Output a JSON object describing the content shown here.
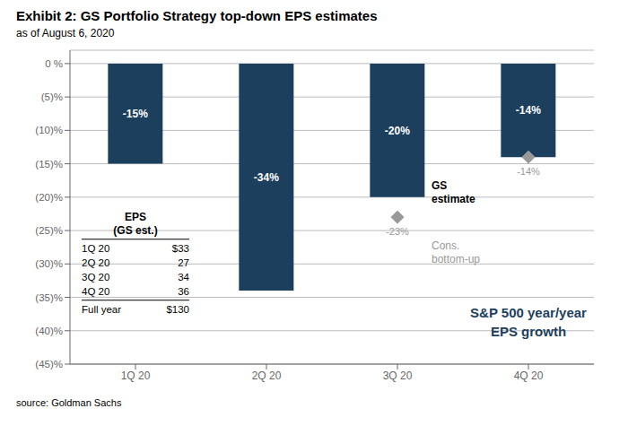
{
  "chart_data": {
    "type": "bar",
    "title": "Exhibit 2: GS Portfolio Strategy top-down EPS estimates",
    "subtitle": "as of August 6, 2020",
    "source": "source: Goldman Sachs",
    "categories": [
      "1Q 20",
      "2Q 20",
      "3Q 20",
      "4Q 20"
    ],
    "series": [
      {
        "name": "GS\nestimate",
        "type": "bar",
        "color": "#1c3f5e",
        "values": [
          -15,
          -34,
          -20,
          -14
        ],
        "value_labels": [
          "-15%",
          "-34%",
          "-20%",
          "-14%"
        ]
      },
      {
        "name": "Cons.\nbottom-up",
        "type": "scatter",
        "marker": "diamond",
        "color": "#999999",
        "values": [
          null,
          null,
          -23,
          -14
        ],
        "value_labels": [
          null,
          null,
          "-23%",
          "-14%"
        ]
      }
    ],
    "data_labels": true,
    "ylim": [
      -45,
      2
    ],
    "yticks": [
      {
        "value": 0,
        "label": "0 %"
      },
      {
        "value": -5,
        "label": "(5)%"
      },
      {
        "value": -10,
        "label": "(10)%"
      },
      {
        "value": -15,
        "label": "(15)%"
      },
      {
        "value": -20,
        "label": "(20)%"
      },
      {
        "value": -25,
        "label": "(25)%"
      },
      {
        "value": -30,
        "label": "(30)%"
      },
      {
        "value": -35,
        "label": "(35)%"
      },
      {
        "value": -40,
        "label": "(40)%"
      },
      {
        "value": -45,
        "label": "(45)%"
      }
    ],
    "grid": true,
    "annotations": [
      {
        "text": "S&P 500 year/year\nEPS growth",
        "color": "#1c3f5e"
      }
    ],
    "table": {
      "header": [
        "EPS",
        "(GS est.)"
      ],
      "rows": [
        [
          "1Q 20",
          "$33"
        ],
        [
          "2Q 20",
          "27"
        ],
        [
          "3Q 20",
          "34"
        ],
        [
          "4Q 20",
          "36"
        ],
        [
          "Full year",
          "$130"
        ]
      ]
    }
  }
}
